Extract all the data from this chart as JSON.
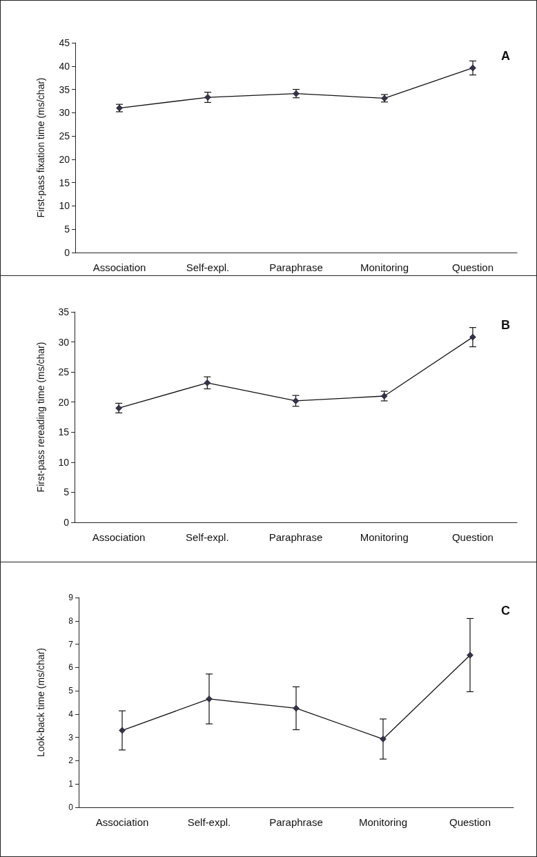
{
  "chart_data": [
    {
      "type": "line",
      "categories": [
        "Association",
        "Self-expl.",
        "Paraphrase",
        "Monitoring",
        "Question"
      ],
      "ylabel": "First-pass fixation time (ms/char)",
      "ylim": [
        0,
        45
      ],
      "yticks": [
        0,
        5,
        10,
        15,
        20,
        25,
        30,
        35,
        40,
        45
      ],
      "marker": "diamond",
      "line_style": "solid",
      "annotations": [
        "A"
      ],
      "series": [
        {
          "color": "#33334d",
          "values": [
            31.0,
            33.3,
            34.1,
            33.1,
            39.6
          ],
          "errors": [
            0.8,
            1.1,
            0.9,
            0.8,
            1.5
          ]
        }
      ]
    },
    {
      "type": "line",
      "categories": [
        "Association",
        "Self-expl.",
        "Paraphrase",
        "Monitoring",
        "Question"
      ],
      "ylabel": "First-pass rereading time (ms/char)",
      "ylim": [
        0,
        35
      ],
      "yticks": [
        0,
        5,
        10,
        15,
        20,
        25,
        30,
        35
      ],
      "marker": "diamond",
      "line_style": "solid",
      "annotations": [
        "B"
      ],
      "series": [
        {
          "color": "#33334d",
          "values": [
            19.0,
            23.2,
            20.2,
            21.0,
            30.8
          ],
          "errors": [
            0.8,
            1.0,
            0.9,
            0.8,
            1.6
          ]
        }
      ]
    },
    {
      "type": "line",
      "categories": [
        "Association",
        "Self-expl.",
        "Paraphrase",
        "Monitoring",
        "Question"
      ],
      "ylabel": "Look-back time (ms/char)",
      "ylim": [
        0,
        9
      ],
      "yticks": [
        0,
        1,
        2,
        3,
        4,
        5,
        6,
        7,
        8,
        9
      ],
      "marker": "diamond",
      "line_style": "solid",
      "annotations": [
        "C"
      ],
      "series": [
        {
          "color": "#33334d",
          "values": [
            3.3,
            4.65,
            4.25,
            2.93,
            6.53
          ],
          "errors": [
            0.84,
            1.07,
            0.92,
            0.86,
            1.57
          ]
        }
      ]
    }
  ]
}
